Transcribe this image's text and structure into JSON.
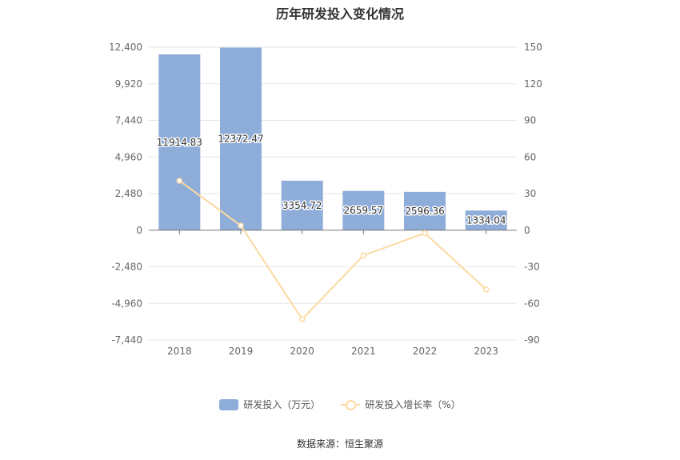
{
  "chart_data": {
    "type": "bar",
    "title": "历年研发投入变化情况",
    "categories": [
      "2018",
      "2019",
      "2020",
      "2021",
      "2022",
      "2023"
    ],
    "series": [
      {
        "name": "研发投入（万元）",
        "type": "bar",
        "axis": "left",
        "values": [
          11914.83,
          12372.47,
          3354.72,
          2659.57,
          2596.36,
          1334.04
        ],
        "labels": [
          "11914.83",
          "12372.47",
          "3354.72",
          "2659.57",
          "2596.36",
          "1334.04"
        ],
        "color": "#8eadd9"
      },
      {
        "name": "研发投入增长率（%）",
        "type": "line",
        "axis": "right",
        "values": [
          40.5,
          3.8,
          -72.9,
          -20.7,
          -2.4,
          -48.6
        ],
        "color": "#fbd9a0"
      }
    ],
    "y_left": {
      "ylim": [
        -7440,
        12400
      ],
      "ticks": [
        12400,
        9920,
        7440,
        4960,
        2480,
        0,
        -2480,
        -4960,
        -7440
      ],
      "tick_labels": [
        "12,400",
        "9,920",
        "7,440",
        "4,960",
        "2,480",
        "0",
        "-2,480",
        "-4,960",
        "-7,440"
      ]
    },
    "y_right": {
      "ylim": [
        -90,
        150
      ],
      "ticks": [
        150,
        120,
        90,
        60,
        30,
        0,
        -30,
        -60,
        -90
      ],
      "tick_labels": [
        "150",
        "120",
        "90",
        "60",
        "30",
        "0",
        "-30",
        "-60",
        "-90"
      ]
    },
    "grid": true,
    "legend_position": "bottom"
  },
  "source_text": "数据来源：恒生聚源"
}
